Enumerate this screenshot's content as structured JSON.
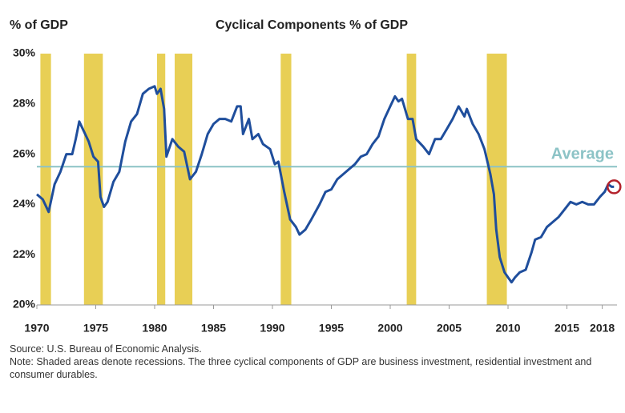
{
  "chart_data": {
    "type": "line",
    "title": "Cyclical Components % of GDP",
    "y_axis_label": "% of GDP",
    "color": "#1f4e9c",
    "x": [
      1970.0,
      1970.5,
      1971.0,
      1971.5,
      1972.0,
      1972.5,
      1973.0,
      1973.3,
      1973.6,
      1974.0,
      1974.4,
      1974.8,
      1975.2,
      1975.4,
      1975.7,
      1976.0,
      1976.5,
      1977.0,
      1977.5,
      1978.0,
      1978.5,
      1979.0,
      1979.5,
      1980.0,
      1980.2,
      1980.5,
      1980.8,
      1981.0,
      1981.5,
      1982.0,
      1982.5,
      1983.0,
      1983.5,
      1984.0,
      1984.5,
      1985.0,
      1985.5,
      1986.0,
      1986.5,
      1987.0,
      1987.3,
      1987.5,
      1988.0,
      1988.3,
      1988.8,
      1989.2,
      1989.8,
      1990.2,
      1990.5,
      1991.0,
      1991.5,
      1992.0,
      1992.3,
      1992.8,
      1993.3,
      1994.0,
      1994.5,
      1995.0,
      1995.5,
      1996.0,
      1996.5,
      1997.0,
      1997.5,
      1998.0,
      1998.5,
      1999.0,
      1999.5,
      2000.0,
      2000.4,
      2000.7,
      2001.0,
      2001.5,
      2001.9,
      2002.2,
      2002.8,
      2003.3,
      2003.8,
      2004.3,
      2004.8,
      2005.3,
      2005.8,
      2006.3,
      2006.5,
      2007.0,
      2007.5,
      2008.0,
      2008.5,
      2008.8,
      2009.0,
      2009.3,
      2009.7,
      2010.0,
      2010.3,
      2010.6,
      2011.0,
      2011.5,
      2012.0,
      2012.3,
      2012.8,
      2013.3,
      2013.8,
      2014.3,
      2014.8,
      2015.3,
      2015.8,
      2016.3,
      2016.8,
      2017.3,
      2017.8,
      2018.2,
      2018.5,
      2018.8,
      2019.0
    ],
    "values": [
      24.4,
      24.2,
      23.7,
      24.8,
      25.3,
      26.0,
      26.0,
      26.6,
      27.3,
      26.9,
      26.5,
      25.9,
      25.7,
      24.3,
      23.9,
      24.1,
      24.9,
      25.3,
      26.5,
      27.3,
      27.6,
      28.4,
      28.6,
      28.7,
      28.4,
      28.6,
      27.8,
      25.9,
      26.6,
      26.3,
      26.1,
      25.0,
      25.3,
      26.0,
      26.8,
      27.2,
      27.4,
      27.4,
      27.3,
      27.9,
      27.9,
      26.8,
      27.4,
      26.6,
      26.8,
      26.4,
      26.2,
      25.6,
      25.7,
      24.5,
      23.4,
      23.1,
      22.8,
      23.0,
      23.4,
      24.0,
      24.5,
      24.6,
      25.0,
      25.2,
      25.4,
      25.6,
      25.9,
      26.0,
      26.4,
      26.7,
      27.4,
      27.9,
      28.3,
      28.1,
      28.2,
      27.4,
      27.4,
      26.6,
      26.3,
      26.0,
      26.6,
      26.6,
      27.0,
      27.4,
      27.9,
      27.5,
      27.8,
      27.2,
      26.8,
      26.2,
      25.2,
      24.4,
      23.0,
      21.9,
      21.3,
      21.1,
      20.9,
      21.1,
      21.3,
      21.4,
      22.1,
      22.6,
      22.7,
      23.1,
      23.3,
      23.5,
      23.8,
      24.1,
      24.0,
      24.1,
      24.0,
      24.0,
      24.3,
      24.5,
      24.8,
      24.7,
      24.7
    ],
    "recessions": [
      [
        1970.3,
        1971.2
      ],
      [
        1974.0,
        1975.6
      ],
      [
        1980.2,
        1980.9
      ],
      [
        1981.7,
        1983.2
      ],
      [
        1990.7,
        1991.6
      ],
      [
        2001.4,
        2002.2
      ],
      [
        2008.2,
        2009.9
      ]
    ],
    "recession_color": "#e8cf55",
    "average": {
      "value": 25.5,
      "label": "Average"
    },
    "average_color": "#8cc3c6",
    "highlight_color": "#b3212b",
    "xlim": [
      1970,
      2019.25
    ],
    "xticks": [
      1970,
      1975,
      1980,
      1985,
      1990,
      1995,
      2000,
      2005,
      2010,
      2015,
      2018
    ],
    "ylim": [
      20,
      30
    ],
    "yticks": [
      {
        "value": 20,
        "label": "20%"
      },
      {
        "value": 22,
        "label": "22%"
      },
      {
        "value": 24,
        "label": "24%"
      },
      {
        "value": 26,
        "label": "26%"
      },
      {
        "value": 28,
        "label": "28%"
      },
      {
        "value": 30,
        "label": "30%"
      }
    ],
    "source": "Source: U.S. Bureau of Economic Analysis.",
    "note": "Note: Shaded areas denote recessions. The three cyclical components of GDP are business investment, residential investment and consumer durables."
  }
}
